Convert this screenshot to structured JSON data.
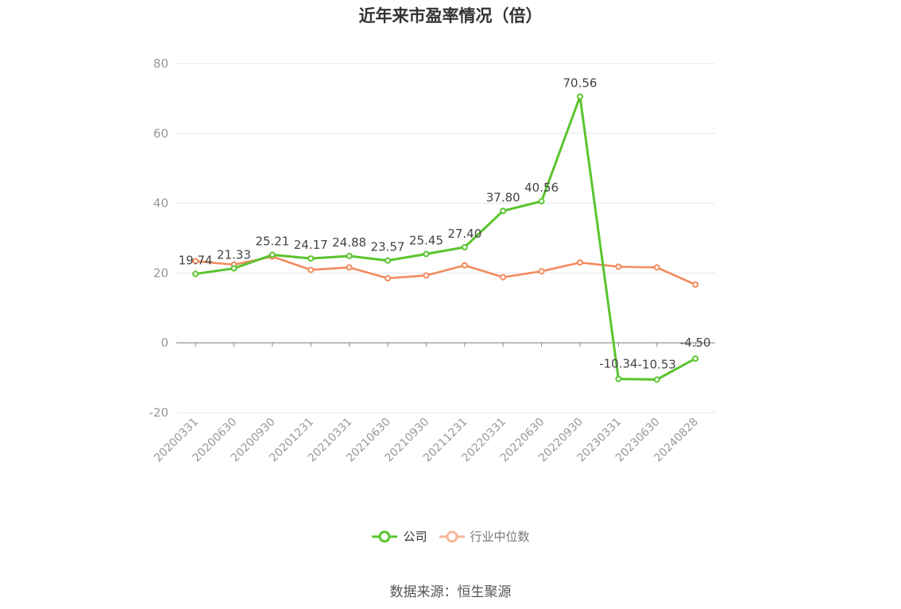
{
  "source": "数据来源：恒生聚源",
  "colors": {
    "company": "#5ac42f",
    "industry": "#f28a5c",
    "industry_legend": "#f5b99e",
    "grid": "#e4e6ee",
    "axis": "#888888",
    "tick_text": "#999999",
    "label_text": "#444444"
  },
  "chart_data": {
    "type": "line",
    "title": "近年来市盈率情况（倍）",
    "xlabel": "",
    "ylabel": "",
    "categories": [
      "20200331",
      "20200630",
      "20200930",
      "20201231",
      "20210331",
      "20210630",
      "20210930",
      "20211231",
      "20220331",
      "20220630",
      "20220930",
      "20230331",
      "20230630",
      "20240828"
    ],
    "yticks": [
      "80",
      "60",
      "40",
      "20",
      "0",
      "-20"
    ],
    "ylim": [
      -20,
      80
    ],
    "grid": true,
    "legend_position": "bottom-center",
    "series": [
      {
        "name": "公司",
        "values": [
          19.74,
          21.33,
          25.21,
          24.17,
          24.88,
          23.57,
          25.45,
          27.4,
          37.8,
          40.56,
          70.56,
          -10.34,
          -10.53,
          -4.5
        ],
        "labels": [
          "19.74",
          "21.33",
          "25.21",
          "24.17",
          "24.88",
          "23.57",
          "25.45",
          "27.40",
          "37.80",
          "40.56",
          "70.56",
          "-10.34",
          "-10.53",
          "-4.50"
        ]
      },
      {
        "name": "行业中位数",
        "values": [
          23.4,
          22.4,
          24.7,
          20.9,
          21.6,
          18.5,
          19.3,
          22.2,
          18.8,
          20.5,
          23.0,
          21.8,
          21.6,
          16.7
        ]
      }
    ]
  }
}
